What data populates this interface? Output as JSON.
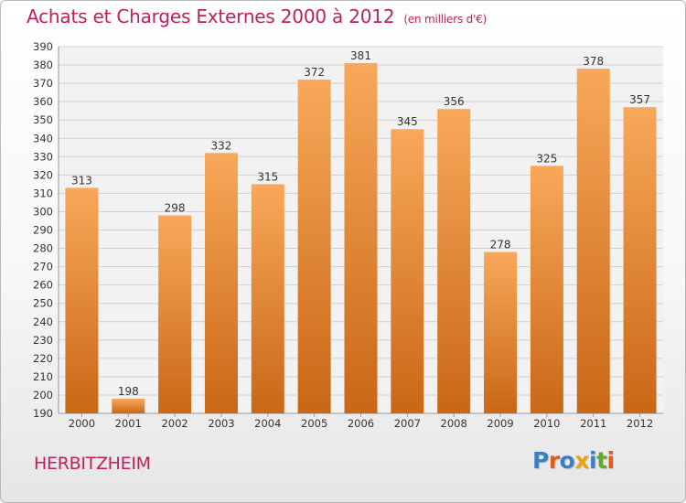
{
  "title": "Achats et Charges Externes 2000 à 2012",
  "subtitle": "(en milliers d'€)",
  "place": "HERBITZHEIM",
  "logo": {
    "text": "Proxiti",
    "colors": [
      "#3a7fc4",
      "#e35a1a",
      "#3a7fc4",
      "#e8a311",
      "#3a7fc4",
      "#66a830",
      "#e35a1a"
    ]
  },
  "colors": {
    "title": "#c0205a",
    "bar_top": "#f8a85a",
    "bar_bottom": "#c96716",
    "grid": "#d0d0d0"
  },
  "chart_data": {
    "type": "bar",
    "categories": [
      "2000",
      "2001",
      "2002",
      "2003",
      "2004",
      "2005",
      "2006",
      "2007",
      "2008",
      "2009",
      "2010",
      "2011",
      "2012"
    ],
    "values": [
      313,
      198,
      298,
      332,
      315,
      372,
      381,
      345,
      356,
      278,
      325,
      378,
      357
    ],
    "ylim": [
      190,
      390
    ],
    "yticks": [
      190,
      200,
      210,
      220,
      230,
      240,
      250,
      260,
      270,
      280,
      290,
      300,
      310,
      320,
      330,
      340,
      350,
      360,
      370,
      380,
      390
    ],
    "grid": true,
    "xlabel": "",
    "ylabel": ""
  }
}
